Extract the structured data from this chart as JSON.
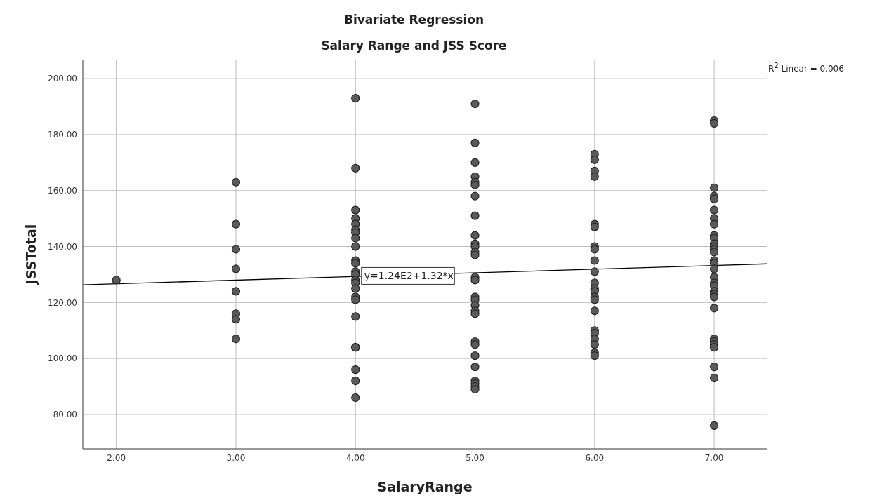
{
  "chart_data": {
    "type": "scatter",
    "title": "Bivariate Regression",
    "subtitle": "Salary Range and JSS Score",
    "xlabel": "SalaryRange",
    "ylabel": "JSSTotal",
    "xlim": [
      1.72,
      7.44
    ],
    "xticks": [
      {
        "value": 2,
        "label": "2.00"
      },
      {
        "value": 3,
        "label": "3.00"
      },
      {
        "value": 4,
        "label": "4.00"
      },
      {
        "value": 5,
        "label": "5.00"
      },
      {
        "value": 6,
        "label": "6.00"
      },
      {
        "value": 7,
        "label": "7.00"
      }
    ],
    "ylim": [
      67.7,
      206.8
    ],
    "yticks": [
      {
        "value": 80,
        "label": "80.00"
      },
      {
        "value": 100,
        "label": "100.00"
      },
      {
        "value": 120,
        "label": "120.00"
      },
      {
        "value": 140,
        "label": "140.00"
      },
      {
        "value": 160,
        "label": "160.00"
      },
      {
        "value": 180,
        "label": "180.00"
      },
      {
        "value": 200,
        "label": "200.00"
      }
    ],
    "grid": true,
    "marker": "circle",
    "series": [
      {
        "color": "#5a5a5a",
        "x": [
          2,
          3,
          3,
          3,
          3,
          3,
          3,
          3,
          3,
          4,
          4,
          4,
          4,
          4,
          4,
          4,
          4,
          4,
          4,
          4,
          4,
          4,
          4,
          4,
          4,
          4,
          4,
          4,
          4,
          4,
          4,
          4,
          4,
          5,
          5,
          5,
          5,
          5,
          5,
          5,
          5,
          5,
          5,
          5,
          5,
          5,
          5,
          5,
          5,
          5,
          5,
          5,
          5,
          5,
          5,
          5,
          5,
          5,
          5,
          5,
          5,
          6,
          6,
          6,
          6,
          6,
          6,
          6,
          6,
          6,
          6,
          6,
          6,
          6,
          6,
          6,
          6,
          6,
          6,
          6,
          6,
          6,
          6,
          7,
          7,
          7,
          7,
          7,
          7,
          7,
          7,
          7,
          7,
          7,
          7,
          7,
          7,
          7,
          7,
          7,
          7,
          7,
          7,
          7,
          7,
          7,
          7,
          7,
          7,
          7,
          7,
          7,
          7,
          7
        ],
        "values": [
          128,
          163,
          148,
          139,
          132,
          124,
          116,
          114,
          107,
          193,
          168,
          153,
          150,
          148,
          146,
          145,
          143,
          140,
          135,
          134,
          131,
          130,
          128,
          127,
          125,
          122,
          121,
          115,
          104,
          104,
          96,
          92,
          86,
          191,
          177,
          170,
          165,
          163,
          162,
          158,
          151,
          144,
          141,
          140,
          138,
          137,
          129,
          128,
          122,
          121,
          119,
          117,
          116,
          106,
          105,
          101,
          97,
          92,
          91,
          90,
          89,
          173,
          171,
          167,
          165,
          148,
          147,
          140,
          139,
          135,
          131,
          127,
          125,
          124,
          122,
          121,
          117,
          110,
          109,
          107,
          105,
          102,
          101,
          185,
          184,
          161,
          158,
          157,
          153,
          150,
          148,
          144,
          143,
          141,
          140,
          139,
          138,
          135,
          134,
          132,
          129,
          127,
          126,
          124,
          123,
          122,
          118,
          107,
          106,
          105,
          104,
          97,
          93,
          76
        ]
      },
      {
        "type": "line",
        "color": "#000000",
        "line_style": "solid",
        "marker": "none",
        "x": [
          1.72,
          7.44
        ],
        "values": [
          126.3,
          133.8
        ]
      }
    ],
    "annotations": [
      {
        "text": "y=1.24E2+1.32*x",
        "x": 4.05,
        "y": 129.5
      },
      "R$^{2}$ Linear = 0.006"
    ]
  }
}
